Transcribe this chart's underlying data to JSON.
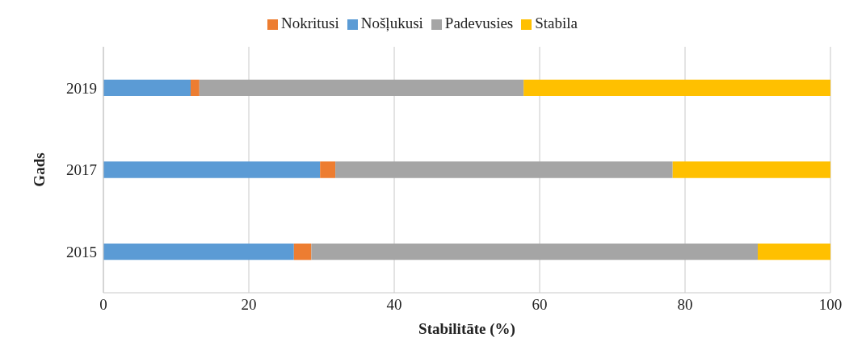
{
  "chart_data": {
    "type": "bar",
    "orientation": "horizontal",
    "stacked": true,
    "xlabel": "Stabilitāte (%)",
    "ylabel": "Gads",
    "categories": [
      "2019",
      "2017",
      "2015"
    ],
    "series": [
      {
        "name": "Nošļukusi",
        "color": "#5b9bd5",
        "values": [
          12.0,
          29.8,
          26.2
        ]
      },
      {
        "name": "Nokritusi",
        "color": "#ed7d31",
        "values": [
          1.2,
          2.1,
          2.4
        ]
      },
      {
        "name": "Padevusies",
        "color": "#a5a5a5",
        "values": [
          44.6,
          46.4,
          61.4
        ]
      },
      {
        "name": "Stabila",
        "color": "#ffc000",
        "values": [
          42.2,
          21.7,
          10.0
        ]
      }
    ],
    "xlim": [
      0,
      100
    ],
    "xticks": [
      0,
      20,
      40,
      60,
      80,
      100
    ],
    "grid": "x",
    "legend": "top"
  }
}
